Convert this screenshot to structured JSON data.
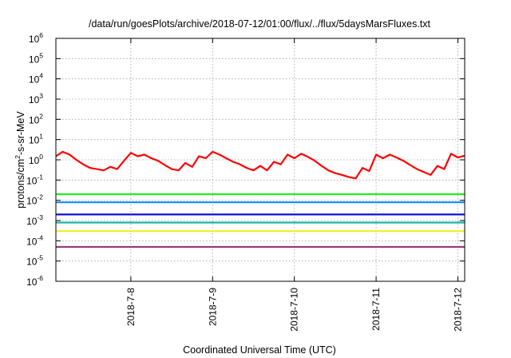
{
  "chart_data": {
    "type": "line",
    "title": "/data/run/goesPlots/archive/2018-07-12/01:00/flux/../flux/5daysMarsFluxes.txt",
    "xlabel": "Coordinated Universal Time (UTC)",
    "ylabel_base": "protons/cm",
    "ylabel_sup": "2",
    "ylabel_rest": "-s-sr-MeV",
    "yscale": "log",
    "ylim": [
      1e-06,
      1000000.0
    ],
    "y_ticks": [
      {
        "base": "10",
        "exp": "6",
        "value": 1000000.0
      },
      {
        "base": "10",
        "exp": "5",
        "value": 100000.0
      },
      {
        "base": "10",
        "exp": "4",
        "value": 10000.0
      },
      {
        "base": "10",
        "exp": "3",
        "value": 1000.0
      },
      {
        "base": "10",
        "exp": "2",
        "value": 100.0
      },
      {
        "base": "10",
        "exp": "1",
        "value": 10.0
      },
      {
        "base": "10",
        "exp": "0",
        "value": 1
      },
      {
        "base": "10",
        "exp": "-1",
        "value": 0.1
      },
      {
        "base": "10",
        "exp": "-2",
        "value": 0.01
      },
      {
        "base": "10",
        "exp": "-3",
        "value": 0.001
      },
      {
        "base": "10",
        "exp": "-4",
        "value": 0.0001
      },
      {
        "base": "10",
        "exp": "-5",
        "value": 1e-05
      },
      {
        "base": "10",
        "exp": "-6",
        "value": 1e-06
      }
    ],
    "xlim": [
      "2018-07-07 02:00",
      "2018-07-12 02:00"
    ],
    "x_ticks": [
      "2018-7-8",
      "2018-7-9",
      "2018-7-10",
      "2018-7-11",
      "2018-7-12"
    ],
    "grid": true,
    "legend": "none",
    "series": [
      {
        "color": "#ff0000",
        "x": [
          "2018-07-07 02:00",
          "2018-07-07 04:00",
          "2018-07-07 06:00",
          "2018-07-07 08:00",
          "2018-07-07 10:00",
          "2018-07-07 12:00",
          "2018-07-07 14:00",
          "2018-07-07 16:00",
          "2018-07-07 18:00",
          "2018-07-07 20:00",
          "2018-07-07 22:00",
          "2018-07-08 00:00",
          "2018-07-08 02:00",
          "2018-07-08 04:00",
          "2018-07-08 06:00",
          "2018-07-08 08:00",
          "2018-07-08 10:00",
          "2018-07-08 12:00",
          "2018-07-08 14:00",
          "2018-07-08 16:00",
          "2018-07-08 18:00",
          "2018-07-08 20:00",
          "2018-07-08 22:00",
          "2018-07-09 00:00",
          "2018-07-09 02:00",
          "2018-07-09 04:00",
          "2018-07-09 06:00",
          "2018-07-09 08:00",
          "2018-07-09 10:00",
          "2018-07-09 12:00",
          "2018-07-09 14:00",
          "2018-07-09 16:00",
          "2018-07-09 18:00",
          "2018-07-09 20:00",
          "2018-07-09 22:00",
          "2018-07-10 00:00",
          "2018-07-10 02:00",
          "2018-07-10 04:00",
          "2018-07-10 06:00",
          "2018-07-10 08:00",
          "2018-07-10 10:00",
          "2018-07-10 12:00",
          "2018-07-10 14:00",
          "2018-07-10 16:00",
          "2018-07-10 18:00",
          "2018-07-10 20:00",
          "2018-07-10 22:00",
          "2018-07-11 00:00",
          "2018-07-11 02:00",
          "2018-07-11 04:00",
          "2018-07-11 06:00",
          "2018-07-11 08:00",
          "2018-07-11 10:00",
          "2018-07-11 12:00",
          "2018-07-11 14:00",
          "2018-07-11 16:00",
          "2018-07-11 18:00",
          "2018-07-11 20:00",
          "2018-07-11 22:00",
          "2018-07-12 00:00",
          "2018-07-12 02:00"
        ],
        "y": [
          1.5,
          2.5,
          1.8,
          1.0,
          0.6,
          0.4,
          0.35,
          0.3,
          0.45,
          0.35,
          0.9,
          2.2,
          1.5,
          1.8,
          1.2,
          0.9,
          0.55,
          0.35,
          0.3,
          0.7,
          0.45,
          1.5,
          1.2,
          2.5,
          1.8,
          1.2,
          0.8,
          0.6,
          0.4,
          0.3,
          0.5,
          0.3,
          0.8,
          0.6,
          1.8,
          1.2,
          2.0,
          1.4,
          0.9,
          0.5,
          0.3,
          0.22,
          0.18,
          0.14,
          0.12,
          0.4,
          0.28,
          1.8,
          1.2,
          1.8,
          1.3,
          0.9,
          0.55,
          0.35,
          0.25,
          0.18,
          0.5,
          0.35,
          2.0,
          1.3,
          1.6
        ]
      },
      {
        "color": "#22ee22",
        "x": [
          "2018-07-07 02:00",
          "2018-07-12 02:00"
        ],
        "y": [
          0.02,
          0.02
        ]
      },
      {
        "color": "#1e90ff",
        "x": [
          "2018-07-07 02:00",
          "2018-07-12 02:00"
        ],
        "y": [
          0.008,
          0.008
        ]
      },
      {
        "color": "#1010cc",
        "x": [
          "2018-07-07 02:00",
          "2018-07-12 02:00"
        ],
        "y": [
          0.002,
          0.002
        ]
      },
      {
        "color": "#20b2aa",
        "x": [
          "2018-07-07 02:00",
          "2018-07-12 02:00"
        ],
        "y": [
          0.0008,
          0.0008
        ]
      },
      {
        "color": "#f0f020",
        "x": [
          "2018-07-07 02:00",
          "2018-07-12 02:00"
        ],
        "y": [
          0.0003,
          0.0003
        ]
      },
      {
        "color": "#9a3a7a",
        "x": [
          "2018-07-07 02:00",
          "2018-07-12 02:00"
        ],
        "y": [
          5e-05,
          5e-05
        ]
      }
    ]
  }
}
